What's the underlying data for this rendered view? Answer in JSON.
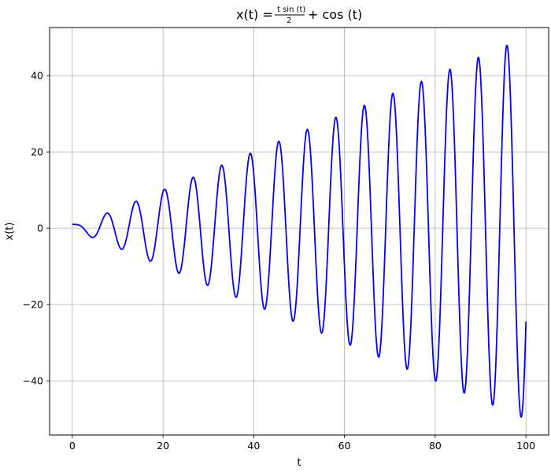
{
  "chart_data": {
    "type": "line",
    "title": {
      "lhs": "x(t) =",
      "frac_numerator": "t sin (t)",
      "frac_denominator": "2",
      "rhs": "+ cos (t)"
    },
    "xlabel": "t",
    "ylabel": "x(t)",
    "xlim": [
      -5,
      105
    ],
    "ylim": [
      -54.2,
      52.6
    ],
    "x_ticks": [
      0,
      20,
      40,
      60,
      80,
      100
    ],
    "y_ticks": [
      -40,
      -20,
      0,
      20,
      40
    ],
    "x_tick_labels": [
      "0",
      "20",
      "40",
      "60",
      "80",
      "100"
    ],
    "y_tick_labels": [
      "−40",
      "−20",
      "0",
      "20",
      "40"
    ],
    "grid": true,
    "series": [
      {
        "formula": "t*sin(t)/2 + cos(t)",
        "x_range": [
          0,
          100
        ],
        "color": "#0000ff",
        "sample_points": [
          [
            0,
            1.0
          ],
          [
            4.73,
            -2.33
          ],
          [
            7.88,
            3.95
          ],
          [
            11.0,
            -5.4
          ],
          [
            14.15,
            7.1
          ],
          [
            17.24,
            -8.45
          ],
          [
            20.37,
            10.25
          ],
          [
            23.5,
            -11.7
          ],
          [
            26.65,
            13.35
          ],
          [
            29.8,
            -14.9
          ],
          [
            32.95,
            16.5
          ],
          [
            36.1,
            -17.95
          ],
          [
            39.25,
            19.65
          ],
          [
            42.4,
            -21.05
          ],
          [
            45.55,
            22.75
          ],
          [
            48.7,
            -24.25
          ],
          [
            51.85,
            25.9
          ],
          [
            55.0,
            -27.4
          ],
          [
            58.1,
            29.05
          ],
          [
            61.25,
            -30.55
          ],
          [
            64.4,
            32.2
          ],
          [
            67.55,
            -33.7
          ],
          [
            70.7,
            35.35
          ],
          [
            73.85,
            -36.95
          ],
          [
            77.0,
            38.5
          ],
          [
            80.15,
            -40.05
          ],
          [
            83.3,
            41.65
          ],
          [
            86.4,
            -43.2
          ],
          [
            89.55,
            44.8
          ],
          [
            92.7,
            -46.35
          ],
          [
            95.85,
            47.9
          ],
          [
            99.0,
            -49.45
          ],
          [
            100.0,
            -24.3
          ]
        ]
      }
    ]
  }
}
